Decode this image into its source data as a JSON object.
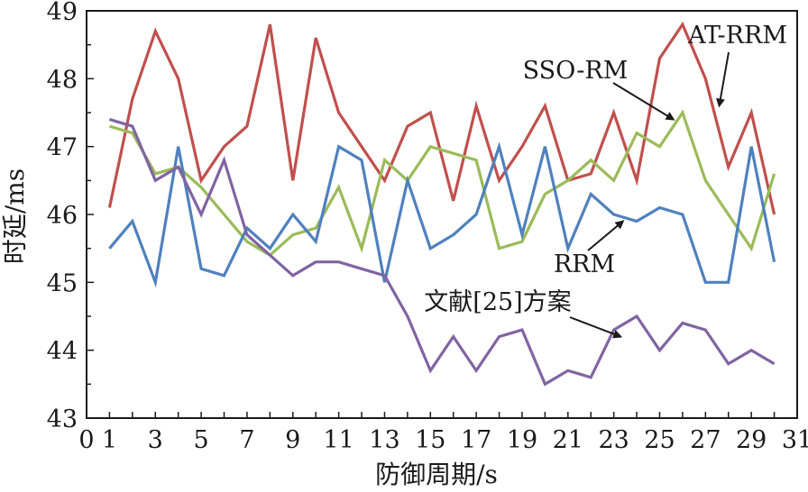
{
  "chart_data": {
    "type": "line",
    "xlabel": "防御周期/s",
    "ylabel": "时延/ms",
    "xlim": [
      0,
      31
    ],
    "ylim": [
      43,
      49
    ],
    "xticks": [
      0,
      1,
      3,
      5,
      7,
      9,
      11,
      13,
      15,
      17,
      19,
      21,
      23,
      25,
      27,
      29,
      31
    ],
    "yticks": [
      43,
      44,
      45,
      46,
      47,
      48,
      49
    ],
    "x": [
      1,
      2,
      3,
      4,
      5,
      6,
      7,
      8,
      9,
      10,
      11,
      12,
      13,
      14,
      15,
      16,
      17,
      18,
      19,
      20,
      21,
      22,
      23,
      24,
      25,
      26,
      27,
      28,
      29,
      30
    ],
    "series": [
      {
        "name": "AT-RRM",
        "color": "#c0504d",
        "values": [
          46.1,
          47.7,
          48.7,
          48.0,
          46.5,
          47.0,
          47.3,
          48.8,
          46.5,
          48.6,
          47.5,
          47.0,
          46.5,
          47.3,
          47.5,
          46.2,
          47.6,
          46.5,
          47.0,
          47.6,
          46.5,
          46.6,
          47.5,
          46.5,
          48.3,
          48.8,
          48.0,
          46.7,
          47.5,
          46.0
        ]
      },
      {
        "name": "SSO-RM",
        "color": "#9bbb59",
        "values": [
          47.3,
          47.2,
          46.6,
          46.7,
          46.4,
          46.0,
          45.6,
          45.4,
          45.7,
          45.8,
          46.4,
          45.5,
          46.8,
          46.5,
          47.0,
          46.9,
          46.8,
          45.5,
          45.6,
          46.3,
          46.5,
          46.8,
          46.5,
          47.2,
          47.0,
          47.5,
          46.5,
          46.0,
          45.5,
          46.6
        ]
      },
      {
        "name": "RRM",
        "color": "#4f81bd",
        "values": [
          45.5,
          45.9,
          45.0,
          47.0,
          45.2,
          45.1,
          45.8,
          45.5,
          46.0,
          45.6,
          47.0,
          46.8,
          45.0,
          46.5,
          45.5,
          45.7,
          46.0,
          47.0,
          45.7,
          47.0,
          45.5,
          46.3,
          46.0,
          45.9,
          46.1,
          46.0,
          45.0,
          45.0,
          47.0,
          45.3
        ]
      },
      {
        "name": "文献[25]方案",
        "color": "#8064a2",
        "values": [
          47.4,
          47.3,
          46.5,
          46.7,
          46.0,
          46.8,
          45.7,
          45.4,
          45.1,
          45.3,
          45.3,
          45.2,
          45.1,
          44.5,
          43.7,
          44.2,
          43.7,
          44.2,
          44.3,
          43.5,
          43.7,
          43.6,
          44.3,
          44.5,
          44.0,
          44.4,
          44.3,
          43.8,
          44.0,
          43.8
        ]
      }
    ],
    "annotations": [
      {
        "text": "AT-RRM",
        "series": 0,
        "point_x": 27.6,
        "point_y": 47.6
      },
      {
        "text": "SSO-RM",
        "series": 1,
        "point_x": 25.6,
        "point_y": 47.4
      },
      {
        "text": "RRM",
        "series": 2,
        "point_x": 23.4,
        "point_y": 45.9
      },
      {
        "text": "文献[25]方案",
        "series": 3,
        "point_x": 23.3,
        "point_y": 44.2
      }
    ]
  }
}
